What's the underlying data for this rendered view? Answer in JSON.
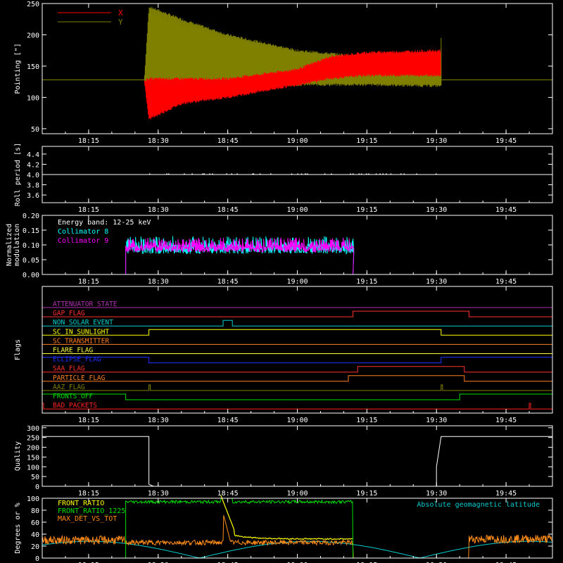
{
  "time_axis": {
    "range": [
      "18:05",
      "19:55"
    ],
    "ticks": [
      "18:15",
      "18:30",
      "18:45",
      "19:00",
      "19:15",
      "19:30",
      "19:45"
    ]
  },
  "chart_data": [
    {
      "type": "line",
      "ylabel": "Pointing [\"]",
      "ylim": [
        42,
        250
      ],
      "yticks": [
        "50",
        "100",
        "150",
        "200",
        "250"
      ],
      "legend": [
        {
          "name": "X",
          "color": "#ff0000"
        },
        {
          "name": "Y",
          "color": "#808000"
        }
      ],
      "series": [
        {
          "name": "X",
          "color": "#ff0000",
          "envelope": [
            [
              "18:27",
              127,
              127
            ],
            [
              "18:28",
              65,
              130
            ],
            [
              "18:35",
              90,
              130
            ],
            [
              "18:45",
              100,
              130
            ],
            [
              "19:00",
              120,
              145
            ],
            [
              "19:07",
              130,
              165
            ],
            [
              "19:15",
              135,
              172
            ],
            [
              "19:31",
              135,
              175
            ]
          ]
        },
        {
          "name": "Y",
          "color": "#808000",
          "envelope": [
            [
              "18:27",
              127,
              127
            ],
            [
              "18:28",
              95,
              245
            ],
            [
              "18:35",
              105,
              225
            ],
            [
              "18:45",
              112,
              200
            ],
            [
              "19:00",
              120,
              175
            ],
            [
              "19:15",
              120,
              165
            ],
            [
              "19:31",
              118,
              165
            ]
          ]
        }
      ],
      "baseline": {
        "value": 128,
        "color": "#808000"
      },
      "active_range": [
        "18:27",
        "19:31"
      ]
    },
    {
      "type": "line",
      "ylabel": "Roll period [s]",
      "ylim": [
        3.45,
        4.55
      ],
      "yticks": [
        "3.6",
        "3.8",
        "4.0",
        "4.2",
        "4.4"
      ],
      "series": [
        {
          "name": "",
          "color": "#ffffff",
          "value": 4.0
        }
      ]
    },
    {
      "type": "line",
      "ylabel": "Normalized modulation",
      "ylim": [
        0.0,
        0.2
      ],
      "yticks": [
        "0.00",
        "0.05",
        "0.10",
        "0.15",
        "0.20"
      ],
      "annotation": "Energy band: 12-25 keV",
      "series": [
        {
          "name": "Collimator 8",
          "color": "#00ffff",
          "active": [
            "18:23",
            "19:12"
          ],
          "level": 0.1,
          "spread": 0.03
        },
        {
          "name": "Collimator 9",
          "color": "#ff00ff",
          "active": [
            "18:23",
            "19:12"
          ],
          "level": 0.1,
          "spread": 0.025
        }
      ]
    },
    {
      "type": "line",
      "ylabel": "Flags",
      "series": [
        {
          "name": "ATTENUATOR_STATE",
          "color": "#b030b0",
          "high": []
        },
        {
          "name": "GAP_FLAG",
          "color": "#ff3030",
          "high": [
            [
              "19:12",
              "19:37"
            ]
          ]
        },
        {
          "name": "NON_SOLAR_EVENT",
          "color": "#00d0d0",
          "high": [
            [
              "18:44",
              "18:46"
            ]
          ]
        },
        {
          "name": "SC_IN_SUNLIGHT",
          "color": "#ffff00",
          "high": [
            [
              "18:28",
              "19:31"
            ]
          ]
        },
        {
          "name": "SC_TRANSMITTER",
          "color": "#ff7f20",
          "high": []
        },
        {
          "name": "FLARE_FLAG",
          "color": "#ffff40",
          "high": []
        },
        {
          "name": "ECLIPSE_FLAG",
          "color": "#2030ff",
          "high": [
            [
              "18:05",
              "18:28"
            ],
            [
              "19:31",
              "19:55"
            ]
          ]
        },
        {
          "name": "SAA_FLAG",
          "color": "#ff3030",
          "high": [
            [
              "19:13",
              "19:36"
            ]
          ]
        },
        {
          "name": "PARTICLE_FLAG",
          "color": "#ff7f20",
          "high": [
            [
              "19:11",
              "19:36"
            ]
          ]
        },
        {
          "name": "AAZ_FLAG",
          "color": "#808000",
          "high": [
            [
              "18:28",
              "18:28"
            ],
            [
              "19:31",
              "19:31"
            ]
          ]
        },
        {
          "name": "FRONTS_OFF",
          "color": "#00e000",
          "high": [
            [
              "18:05",
              "18:23"
            ],
            [
              "19:35",
              "19:55"
            ]
          ]
        },
        {
          "name": "BAD_PACKETS",
          "color": "#ff2020",
          "high": [
            [
              "18:05",
              "18:05"
            ],
            [
              "19:50",
              "19:50"
            ]
          ]
        }
      ]
    },
    {
      "type": "line",
      "ylabel": "Quality",
      "ylim": [
        0,
        310
      ],
      "yticks": [
        "0",
        "50",
        "100",
        "150",
        "200",
        "250",
        "300"
      ],
      "series": [
        {
          "name": "",
          "color": "#ffffff",
          "points": [
            [
              "18:05",
              255
            ],
            [
              "18:28",
              255
            ],
            [
              "18:28",
              10
            ],
            [
              "18:29",
              0
            ],
            [
              "19:30",
              0
            ],
            [
              "19:30",
              100
            ],
            [
              "19:31",
              255
            ],
            [
              "19:55",
              255
            ]
          ]
        }
      ]
    },
    {
      "type": "line",
      "ylabel": "Degrees or %",
      "ylim": [
        0,
        100
      ],
      "yticks": [
        "0",
        "20",
        "40",
        "60",
        "80",
        "100"
      ],
      "legend": [
        {
          "name": "FRONT_RATIO",
          "color": "#ffff00"
        },
        {
          "name": "FRONT_RATIO_1225",
          "color": "#00e000"
        },
        {
          "name": "MAX_DET_VS_TOT",
          "color": "#ff8c1a"
        }
      ],
      "annotation": "Absolute geomagnetic latitude",
      "series": [
        {
          "name": "FRONT_RATIO",
          "color": "#ffff00"
        },
        {
          "name": "FRONT_RATIO_1225",
          "color": "#00e000"
        },
        {
          "name": "MAX_DET_VS_TOT",
          "color": "#ff8c1a"
        },
        {
          "name": "Absolute geomagnetic latitude",
          "color": "#00cccc"
        }
      ]
    }
  ]
}
